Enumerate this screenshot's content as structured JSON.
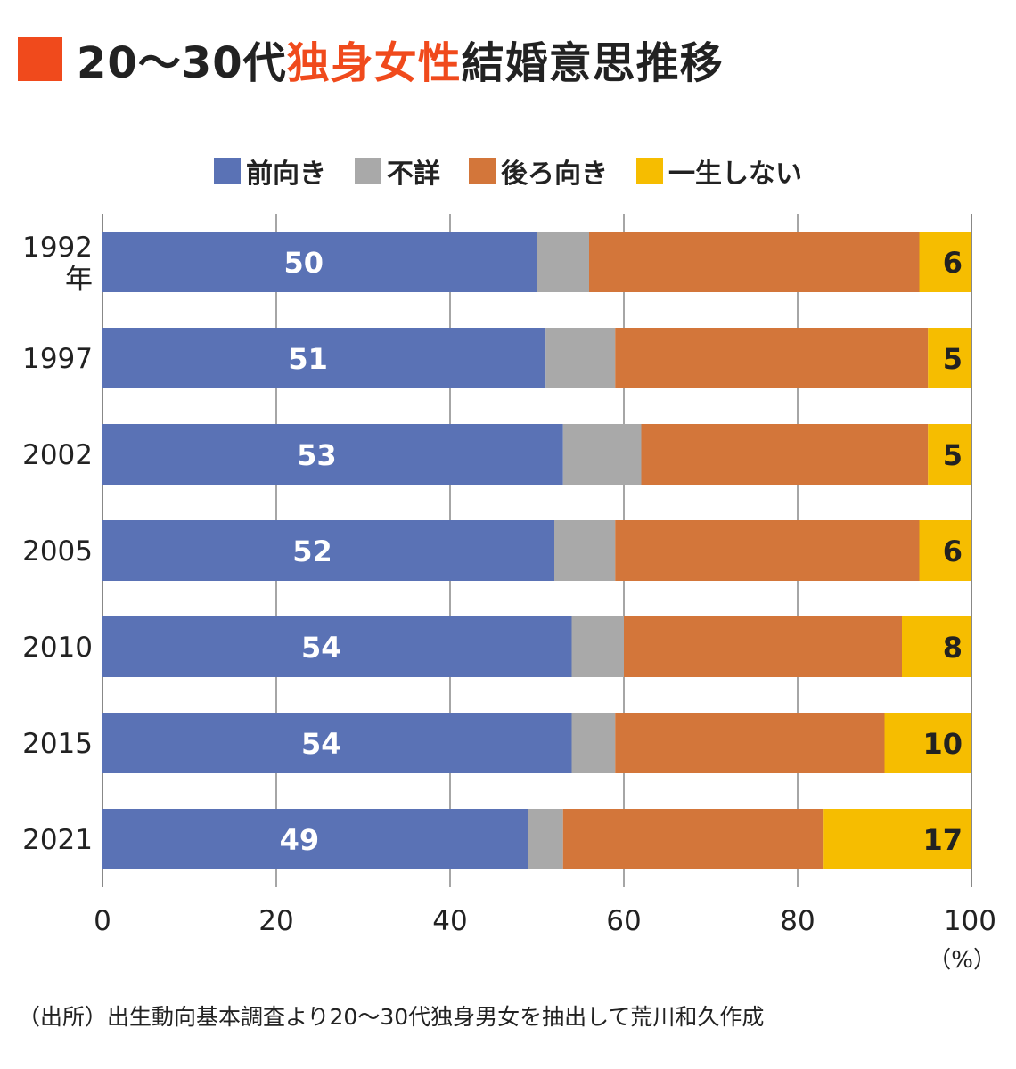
{
  "title": {
    "prefix": "20～30代",
    "highlight": "独身女性",
    "suffix": "結婚意思推移"
  },
  "colors": {
    "accent": "#f04a1c",
    "highlight": "#f04a1c",
    "series": [
      "#5a72b5",
      "#a9a9a9",
      "#d3763a",
      "#f6bd00"
    ],
    "grid": "#888888"
  },
  "source": "（出所）出生動向基本調査より20～30代独身男女を抽出して荒川和久作成",
  "chart_data": {
    "type": "bar",
    "orientation": "horizontal",
    "stacked": true,
    "categories": [
      "1992年",
      "1997",
      "2002",
      "2005",
      "2010",
      "2015",
      "2021"
    ],
    "series": [
      {
        "name": "前向き",
        "values": [
          50,
          51,
          53,
          52,
          54,
          54,
          49
        ]
      },
      {
        "name": "不詳",
        "values": [
          6,
          8,
          9,
          7,
          6,
          5,
          4
        ]
      },
      {
        "name": "後ろ向き",
        "values": [
          38,
          36,
          33,
          35,
          32,
          31,
          30
        ]
      },
      {
        "name": "一生しない",
        "values": [
          6,
          5,
          5,
          6,
          8,
          10,
          17
        ]
      }
    ],
    "data_labels": {
      "前向き": [
        "50",
        "51",
        "53",
        "52",
        "54",
        "54",
        "49"
      ],
      "一生しない": [
        "6",
        "5",
        "5",
        "6",
        "8",
        "10",
        "17"
      ]
    },
    "xlim": [
      0,
      100
    ],
    "xticks": [
      "0",
      "20",
      "40",
      "60",
      "80",
      "100"
    ],
    "unit": "（%）",
    "grid": true,
    "legend": "top-center"
  }
}
